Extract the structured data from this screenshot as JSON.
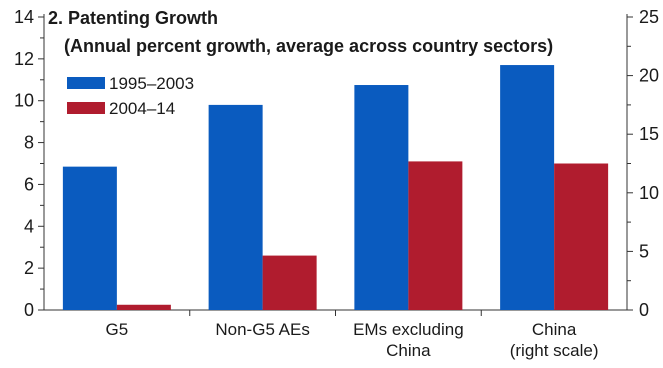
{
  "chart_data": {
    "type": "bar",
    "title": "2. Patenting Growth",
    "subtitle": "(Annual percent growth, average across country sectors)",
    "categories": [
      [
        "G5"
      ],
      [
        "Non-G5 AEs"
      ],
      [
        "EMs excluding",
        "China"
      ],
      [
        "China",
        "(right scale)"
      ]
    ],
    "series": [
      {
        "name": "1995–2003",
        "color": "#0a5bbf",
        "values": [
          6.85,
          9.8,
          10.75,
          20.9
        ],
        "axes": [
          "left",
          "left",
          "left",
          "right"
        ]
      },
      {
        "name": "2004–14",
        "color": "#b01c2e",
        "values": [
          0.25,
          2.6,
          7.1,
          12.5
        ],
        "axes": [
          "left",
          "left",
          "left",
          "right"
        ]
      }
    ],
    "left_axis": {
      "ylim": [
        0,
        14
      ],
      "ticks": [
        "0",
        "2",
        "4",
        "6",
        "8",
        "10",
        "12",
        "14"
      ],
      "minor_ticks": true
    },
    "right_axis": {
      "ylim": [
        0,
        25
      ],
      "ticks": [
        "0",
        "5",
        "10",
        "15",
        "20",
        "25"
      ],
      "minor_ticks": true
    },
    "legend_position": "top-left",
    "grid": false
  }
}
